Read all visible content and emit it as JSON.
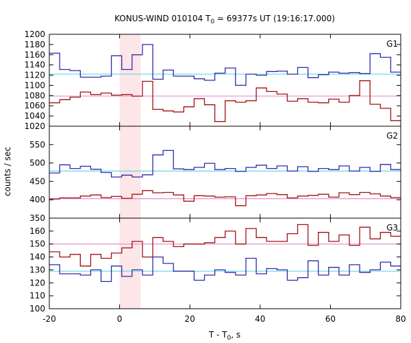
{
  "chart_data": {
    "type": "line",
    "title_main": "KONUS-WIND 010104 T",
    "title_sub": "0",
    "title_rest": " = 69377s UT (19:16:17.000)",
    "xlabel_main": "T - T",
    "xlabel_sub": "0",
    "xlabel_rest": ", s",
    "ylabel": "counts / sec",
    "xlim": [
      -20,
      80
    ],
    "x_ticks": [
      "-20",
      "0",
      "20",
      "40",
      "60",
      "80"
    ],
    "x_tick_values": [
      -20,
      0,
      20,
      40,
      60,
      80
    ],
    "highlight_interval": [
      0,
      6
    ],
    "bin_width": 2.944,
    "colors": {
      "blue_series": "#2b2bab",
      "red_series": "#a01010",
      "blue_background": "#6ad4e8",
      "red_background": "#e890d0",
      "highlight": "#fde6e8"
    },
    "panels": [
      {
        "name": "G1",
        "ylim": [
          1020,
          1200
        ],
        "y_ticks": [
          "1020",
          "1040",
          "1060",
          "1080",
          "1100",
          "1120",
          "1140",
          "1160",
          "1180",
          "1200"
        ],
        "y_tick_values": [
          1020,
          1040,
          1060,
          1080,
          1100,
          1120,
          1140,
          1160,
          1180,
          1200
        ],
        "background_blue": 1122,
        "background_red": 1079,
        "blue_values": [
          1163,
          1131,
          1129,
          1116,
          1116,
          1118,
          1158,
          1131,
          1160,
          1180,
          1112,
          1130,
          1118,
          1118,
          1113,
          1110,
          1124,
          1134,
          1100,
          1122,
          1120,
          1127,
          1128,
          1122,
          1135,
          1115,
          1121,
          1126,
          1124,
          1125,
          1123,
          1162,
          1155,
          1126,
          1123,
          1085,
          1124,
          1116,
          1113,
          1106,
          1105,
          1106,
          1144,
          1130,
          1124,
          1115,
          1179
        ],
        "red_values": [
          1066,
          1072,
          1077,
          1087,
          1082,
          1085,
          1081,
          1082,
          1079,
          1108,
          1053,
          1050,
          1048,
          1058,
          1074,
          1062,
          1029,
          1070,
          1067,
          1070,
          1095,
          1088,
          1083,
          1069,
          1074,
          1067,
          1066,
          1073,
          1067,
          1080,
          1109,
          1063,
          1055,
          1031,
          1044,
          1061,
          1072,
          1078,
          1079,
          1085,
          1087,
          1076,
          1067,
          1073,
          1113,
          1066,
          1100
        ]
      },
      {
        "name": "G2",
        "ylim": [
          350,
          600
        ],
        "y_ticks": [
          "350",
          "400",
          "450",
          "500",
          "550"
        ],
        "y_tick_values": [
          350,
          400,
          450,
          500,
          550
        ],
        "background_blue": 478,
        "background_red": 403,
        "blue_values": [
          473,
          495,
          485,
          491,
          483,
          474,
          462,
          467,
          462,
          468,
          522,
          534,
          484,
          482,
          488,
          499,
          482,
          485,
          477,
          488,
          494,
          485,
          492,
          478,
          490,
          477,
          485,
          482,
          492,
          478,
          488,
          477,
          496,
          482,
          485,
          479,
          484,
          477,
          492,
          478,
          493,
          483,
          495,
          484,
          483,
          477,
          488
        ],
        "red_values": [
          402,
          405,
          405,
          410,
          413,
          406,
          409,
          404,
          415,
          425,
          419,
          420,
          413,
          396,
          411,
          410,
          407,
          408,
          384,
          411,
          413,
          417,
          414,
          405,
          410,
          412,
          415,
          407,
          419,
          414,
          420,
          416,
          410,
          406,
          396,
          424,
          421,
          420,
          413,
          400,
          394,
          414,
          418,
          403,
          410,
          416,
          411
        ]
      },
      {
        "name": "G3",
        "ylim": [
          100,
          170
        ],
        "y_ticks": [
          "100",
          "110",
          "120",
          "130",
          "140",
          "150",
          "160"
        ],
        "y_tick_values": [
          100,
          110,
          120,
          130,
          140,
          150,
          160
        ],
        "background_blue": 129,
        "background_red": 150,
        "blue_values": [
          134,
          127,
          127,
          126,
          130,
          121,
          133,
          125,
          130,
          126,
          140,
          135,
          129,
          129,
          122,
          126,
          130,
          128,
          126,
          139,
          127,
          131,
          130,
          122,
          124,
          137,
          126,
          132,
          126,
          134,
          128,
          130,
          136,
          133,
          124,
          125,
          139,
          133,
          131,
          137,
          132,
          125,
          124,
          124,
          123,
          138,
          130
        ],
        "red_values": [
          144,
          140,
          142,
          133,
          142,
          139,
          143,
          147,
          152,
          140,
          155,
          152,
          148,
          150,
          150,
          151,
          155,
          160,
          150,
          162,
          155,
          152,
          152,
          158,
          165,
          149,
          159,
          152,
          157,
          149,
          163,
          154,
          159,
          156,
          157,
          148,
          151,
          153,
          155,
          160,
          154,
          152,
          150,
          150,
          150,
          160,
          149
        ]
      }
    ]
  }
}
